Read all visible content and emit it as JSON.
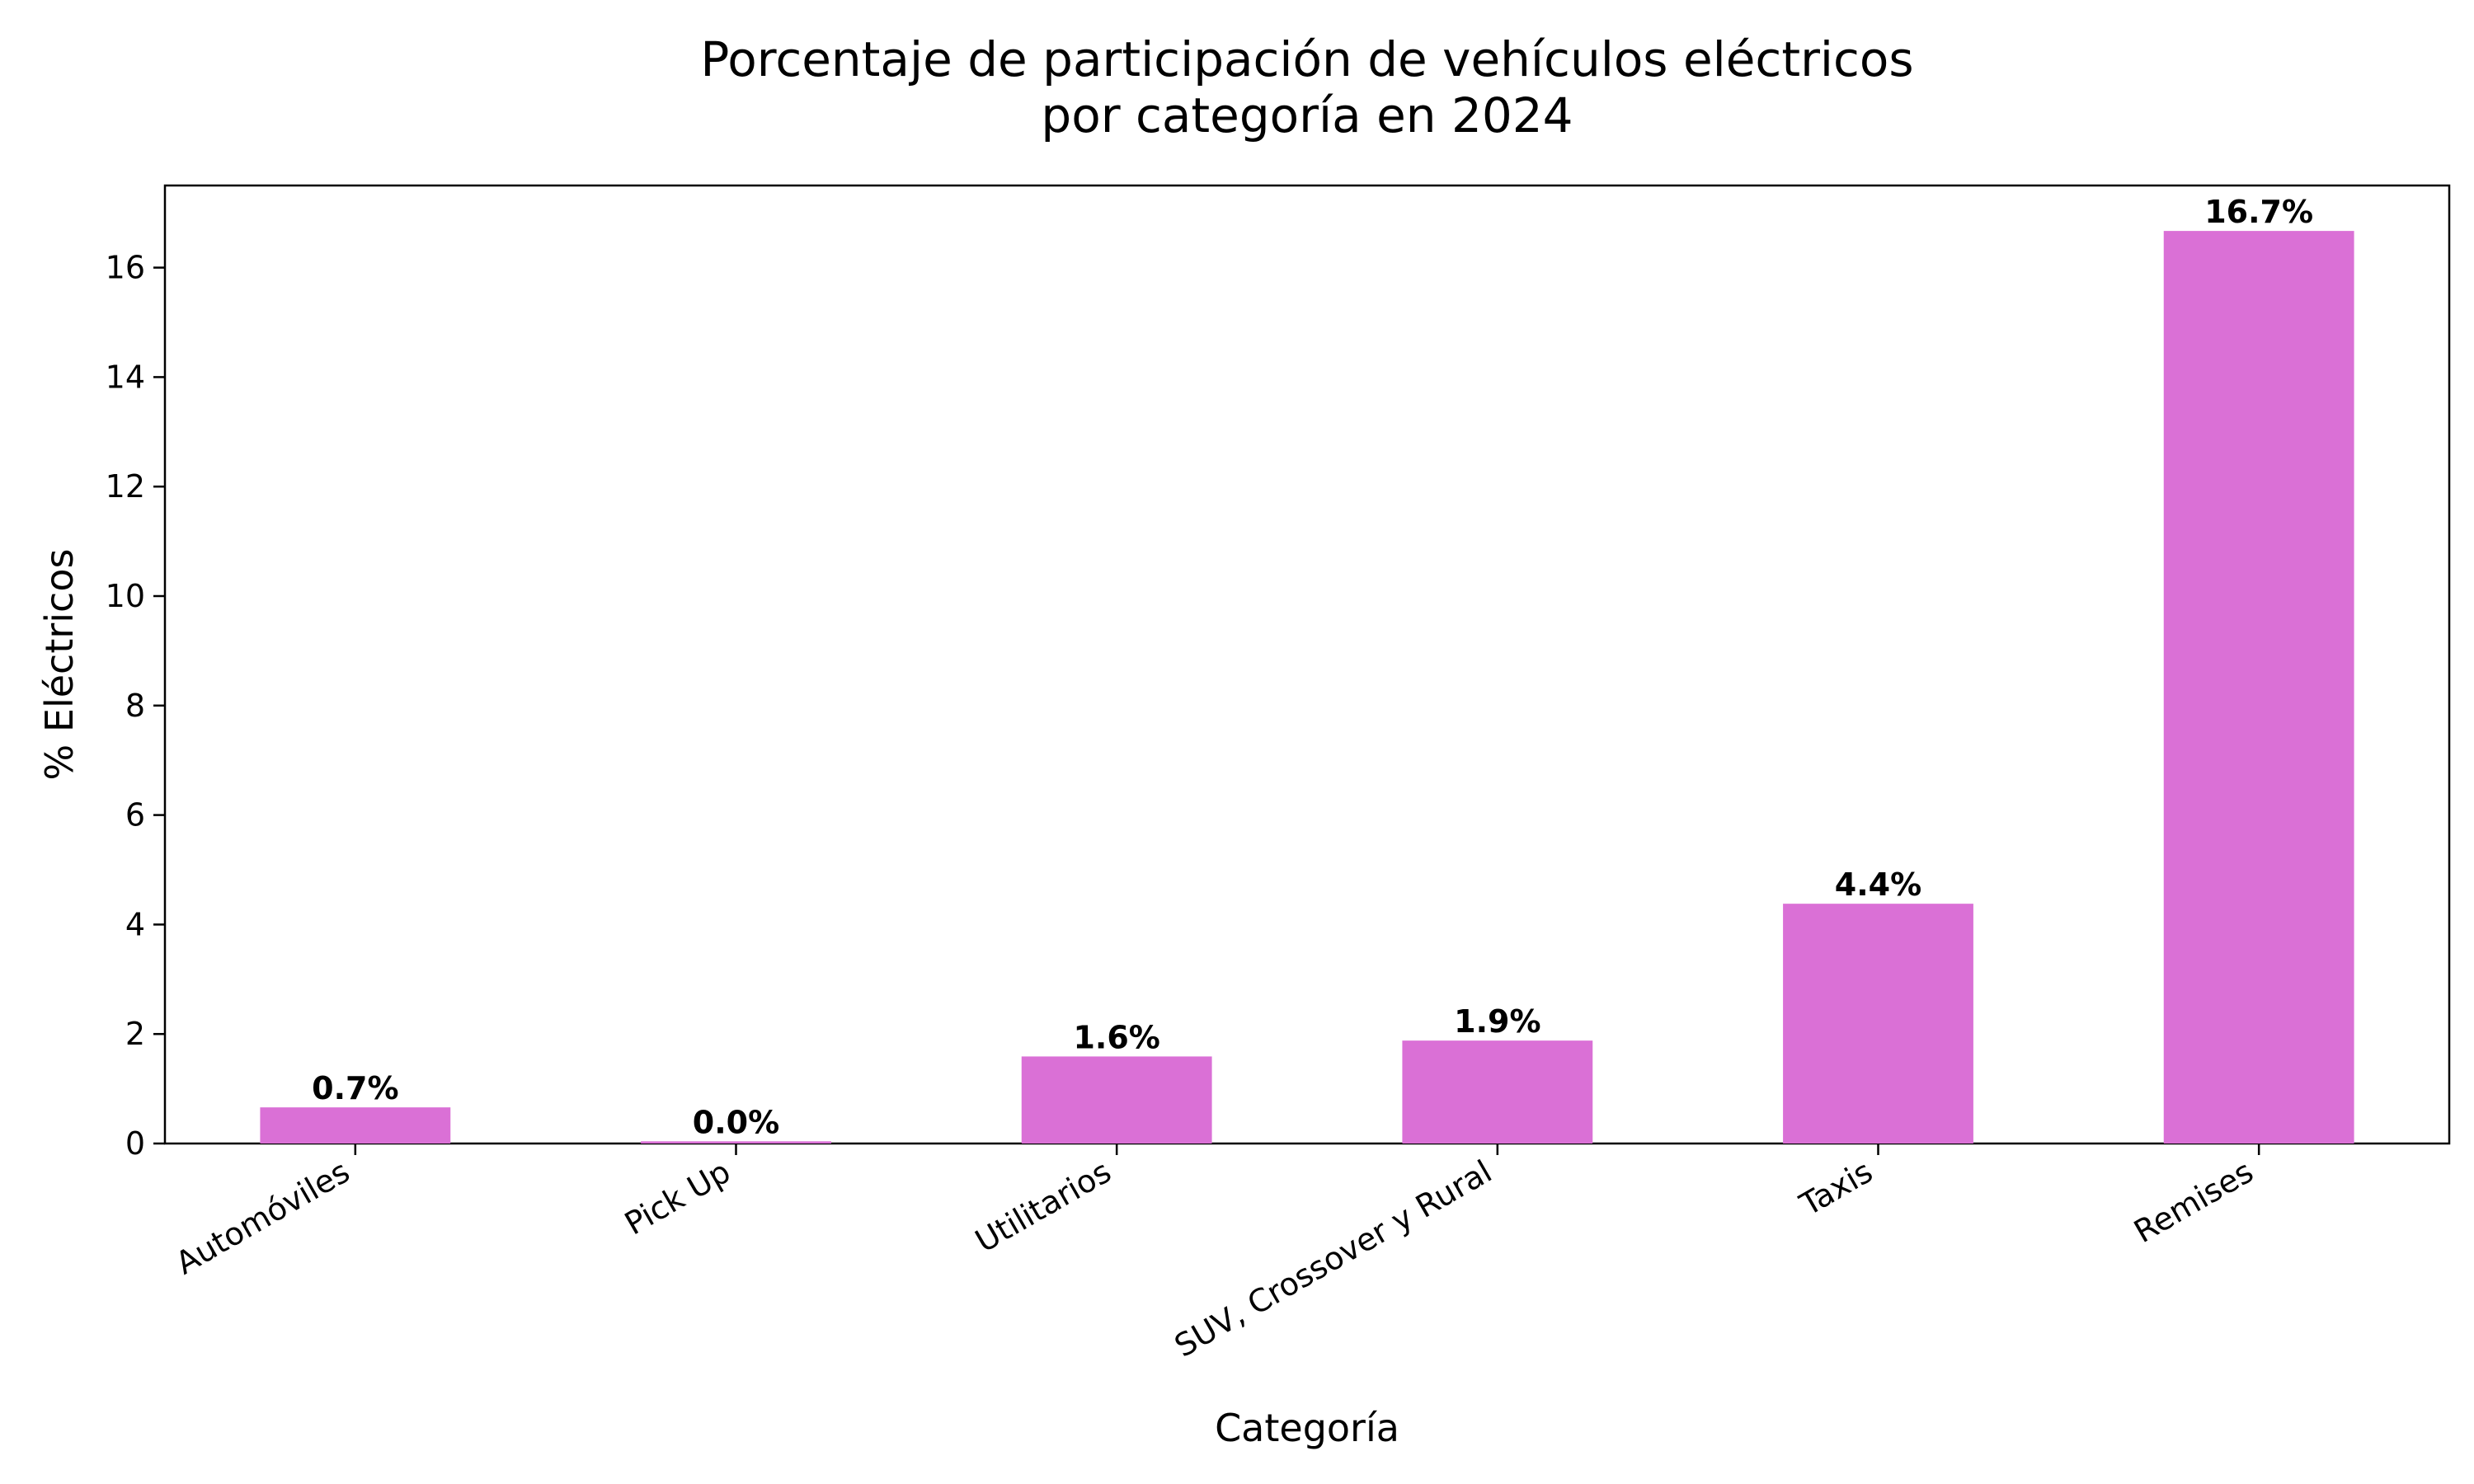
{
  "chart_data": {
    "type": "bar",
    "title": "Porcentaje de participación de vehículos eléctricos",
    "subtitle": "por categoría en 2024",
    "xlabel": "Categoría",
    "ylabel": "% Eléctricos",
    "categories": [
      "Automóviles",
      "Pick Up",
      "Utilitarios",
      "SUV, Crossover y Rural",
      "Taxis",
      "Remises"
    ],
    "values": [
      0.66,
      0.04,
      1.59,
      1.88,
      4.38,
      16.67
    ],
    "data_labels": [
      "0.7%",
      "0.0%",
      "1.6%",
      "1.9%",
      "4.4%",
      "16.7%"
    ],
    "ylim": [
      0,
      17.5
    ],
    "yticks": [
      0,
      2,
      4,
      6,
      8,
      10,
      12,
      14,
      16
    ],
    "ytick_labels": [
      "0",
      "2",
      "4",
      "6",
      "8",
      "10",
      "12",
      "14",
      "16"
    ],
    "bar_color": "#da70d6",
    "grid": false,
    "legend": "none"
  }
}
